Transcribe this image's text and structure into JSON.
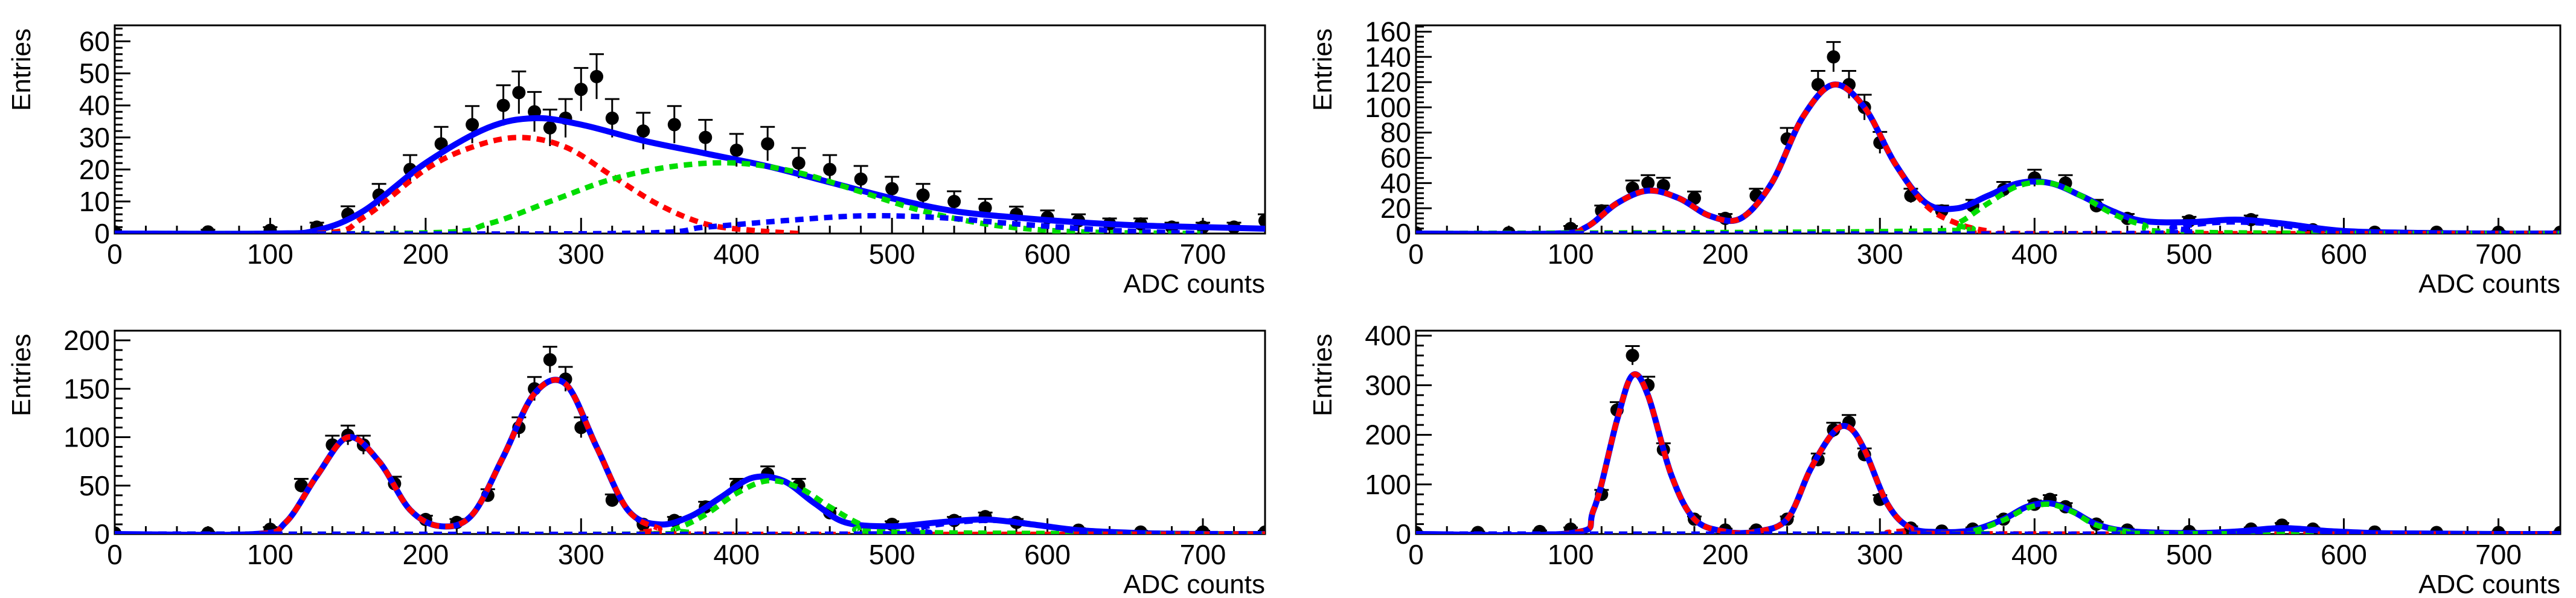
{
  "figure": {
    "panel_titles": [
      "",
      "",
      "",
      ""
    ]
  },
  "chart_data": [
    {
      "type": "scatter",
      "title": "",
      "xlabel": "ADC counts",
      "ylabel": "Entries",
      "xlim": [
        0,
        740
      ],
      "ylim": [
        0,
        65
      ],
      "xticks": [
        0,
        100,
        200,
        300,
        400,
        500,
        600,
        700
      ],
      "yticks": [
        0,
        10,
        20,
        30,
        40,
        50,
        60
      ],
      "grid": false,
      "legend": "none",
      "data_points": {
        "marker": "filled-circle",
        "error_bars": true,
        "x": [
          0,
          60,
          100,
          130,
          150,
          170,
          190,
          210,
          230,
          250,
          260,
          270,
          280,
          290,
          300,
          310,
          320,
          340,
          360,
          380,
          400,
          420,
          440,
          460,
          480,
          500,
          520,
          540,
          560,
          580,
          600,
          620,
          640,
          660,
          680,
          700,
          720,
          740
        ],
        "y": [
          0.5,
          0.5,
          1,
          2,
          6,
          12,
          20,
          28,
          34,
          40,
          44,
          38,
          33,
          36,
          45,
          49,
          36,
          32,
          34,
          30,
          26,
          28,
          22,
          20,
          17,
          14,
          12,
          10,
          8,
          6,
          5,
          4,
          3,
          3,
          2,
          2,
          2,
          4
        ],
        "yerr": [
          0.7,
          0.7,
          1,
          1.4,
          2.5,
          3.5,
          4.5,
          5.3,
          5.8,
          6.3,
          6.6,
          6.2,
          5.7,
          6,
          6.7,
          7,
          6,
          5.7,
          5.8,
          5.5,
          5.1,
          5.3,
          4.7,
          4.5,
          4.1,
          3.7,
          3.5,
          3.2,
          2.8,
          2.4,
          2.2,
          2,
          1.7,
          1.7,
          1.4,
          1.4,
          1.4,
          2
        ]
      },
      "series": [
        {
          "color": "#0000ff",
          "style": "solid",
          "x": [
            0,
            100,
            130,
            160,
            200,
            240,
            270,
            300,
            340,
            380,
            420,
            460,
            500,
            540,
            580,
            620,
            660,
            700,
            740
          ],
          "y": [
            0,
            0,
            1,
            7,
            22,
            33,
            36,
            34,
            29,
            25,
            21,
            16,
            11,
            7,
            5,
            3.5,
            2.5,
            2,
            1.5
          ]
        },
        {
          "color": "#ff0000",
          "style": "dashed",
          "x": [
            0,
            130,
            160,
            200,
            230,
            260,
            290,
            320,
            350,
            380,
            410,
            440
          ],
          "y": [
            0,
            0,
            5,
            20,
            27,
            30,
            27,
            18,
            9,
            3,
            1,
            0
          ]
        },
        {
          "color": "#00dd00",
          "style": "dashed",
          "x": [
            0,
            200,
            240,
            280,
            320,
            360,
            400,
            440,
            480,
            520,
            560,
            600,
            640,
            700
          ],
          "y": [
            0,
            0.2,
            3,
            10,
            17,
            21,
            22,
            19,
            13,
            7,
            3,
            1,
            0.3,
            0
          ]
        },
        {
          "color": "#0000ff",
          "style": "dashed",
          "x": [
            0,
            320,
            380,
            430,
            480,
            530,
            580,
            640,
            700
          ],
          "y": [
            0,
            0,
            2,
            4,
            5.5,
            5,
            3,
            1,
            0
          ]
        }
      ]
    },
    {
      "type": "scatter",
      "title": "",
      "xlabel": "ADC counts",
      "ylabel": "Entries",
      "xlim": [
        0,
        740
      ],
      "ylim": [
        0,
        165
      ],
      "xticks": [
        0,
        100,
        200,
        300,
        400,
        500,
        600,
        700
      ],
      "yticks": [
        0,
        20,
        40,
        60,
        80,
        100,
        120,
        140,
        160
      ],
      "grid": false,
      "legend": "none",
      "data_points": {
        "marker": "filled-circle",
        "error_bars": true,
        "x": [
          0,
          60,
          100,
          120,
          140,
          150,
          160,
          180,
          200,
          220,
          240,
          260,
          270,
          280,
          290,
          300,
          320,
          340,
          360,
          380,
          400,
          420,
          440,
          460,
          500,
          540,
          580,
          620,
          660,
          700,
          740
        ],
        "y": [
          0.5,
          0.5,
          4,
          18,
          36,
          40,
          38,
          28,
          12,
          30,
          75,
          118,
          140,
          118,
          100,
          72,
          30,
          18,
          22,
          35,
          44,
          40,
          22,
          12,
          10,
          11,
          3,
          1,
          1,
          1,
          1
        ],
        "yerr": [
          0.7,
          0.7,
          2,
          4.2,
          6,
          6.3,
          6.2,
          5.3,
          3.5,
          5.5,
          8.7,
          10.9,
          11.8,
          10.9,
          10,
          8.5,
          5.5,
          4.2,
          4.7,
          5.9,
          6.6,
          6.3,
          4.7,
          3.5,
          3.2,
          3.3,
          1.7,
          1,
          1,
          1,
          1
        ]
      },
      "series": [
        {
          "color": "#0000ff",
          "style": "solid",
          "x": [
            0,
            90,
            110,
            130,
            150,
            170,
            190,
            210,
            230,
            250,
            270,
            290,
            310,
            330,
            350,
            370,
            390,
            410,
            430,
            450,
            470,
            500,
            530,
            560,
            600,
            650,
            700,
            740
          ],
          "y": [
            0,
            0,
            5,
            24,
            34,
            28,
            14,
            12,
            40,
            92,
            118,
            100,
            55,
            24,
            20,
            30,
            40,
            40,
            30,
            18,
            10,
            9,
            11,
            8,
            2,
            0.5,
            0,
            0
          ]
        },
        {
          "color": "#ff0000",
          "style": "dashed",
          "x": [
            0,
            90,
            110,
            130,
            150,
            170,
            190,
            210,
            230,
            250,
            270,
            290,
            310,
            330,
            350,
            370,
            390,
            740
          ],
          "y": [
            0,
            0,
            5,
            24,
            34,
            28,
            14,
            12,
            40,
            92,
            118,
            100,
            55,
            22,
            8,
            2,
            0,
            0
          ]
        },
        {
          "color": "#00dd00",
          "style": "dashed",
          "x": [
            0,
            330,
            350,
            370,
            390,
            410,
            430,
            450,
            470,
            500,
            740
          ],
          "y": [
            0,
            2,
            8,
            24,
            38,
            40,
            30,
            16,
            7,
            1,
            0
          ]
        },
        {
          "color": "#0000ff",
          "style": "dashed",
          "x": [
            0,
            460,
            490,
            520,
            550,
            580,
            610,
            740
          ],
          "y": [
            0,
            0,
            5,
            9,
            8,
            3,
            0.5,
            0
          ]
        }
      ]
    },
    {
      "type": "scatter",
      "title": "",
      "xlabel": "ADC counts",
      "ylabel": "Entries",
      "xlim": [
        0,
        740
      ],
      "ylim": [
        0,
        210
      ],
      "xticks": [
        0,
        100,
        200,
        300,
        400,
        500,
        600,
        700
      ],
      "yticks": [
        0,
        50,
        100,
        150,
        200
      ],
      "grid": false,
      "legend": "none",
      "data_points": {
        "marker": "filled-circle",
        "error_bars": true,
        "x": [
          0,
          60,
          100,
          120,
          140,
          150,
          160,
          180,
          200,
          220,
          240,
          260,
          270,
          280,
          290,
          300,
          320,
          340,
          360,
          380,
          400,
          420,
          440,
          460,
          500,
          540,
          560,
          580,
          620,
          660,
          700,
          740
        ],
        "y": [
          1,
          1,
          5,
          50,
          92,
          102,
          92,
          52,
          15,
          12,
          40,
          110,
          150,
          180,
          160,
          110,
          35,
          10,
          14,
          28,
          50,
          62,
          50,
          22,
          10,
          14,
          18,
          12,
          4,
          2,
          2,
          2
        ],
        "yerr": [
          1,
          1,
          2.2,
          7,
          9.6,
          10,
          9.6,
          7.2,
          3.9,
          3.5,
          6.3,
          10.5,
          12.2,
          13.4,
          12.6,
          10.5,
          5.9,
          3.2,
          3.7,
          5.3,
          7,
          7.9,
          7,
          4.7,
          3.2,
          3.7,
          4.2,
          3.5,
          2,
          1.4,
          1.4,
          1.4
        ]
      },
      "series": [
        {
          "color": "#0000ff",
          "style": "solid",
          "x": [
            0,
            90,
            110,
            130,
            150,
            170,
            190,
            210,
            230,
            250,
            270,
            290,
            310,
            330,
            350,
            370,
            390,
            410,
            430,
            450,
            470,
            500,
            530,
            560,
            590,
            620,
            660,
            700,
            740
          ],
          "y": [
            0,
            0,
            12,
            60,
            100,
            75,
            25,
            8,
            20,
            80,
            145,
            155,
            90,
            25,
            10,
            18,
            38,
            58,
            55,
            32,
            12,
            8,
            12,
            15,
            10,
            4,
            1,
            0,
            0
          ]
        },
        {
          "color": "#ff0000",
          "style": "dashed",
          "x": [
            0,
            90,
            110,
            130,
            150,
            170,
            190,
            210,
            230,
            250,
            270,
            290,
            310,
            330,
            350,
            370,
            740
          ],
          "y": [
            0,
            0,
            12,
            60,
            100,
            75,
            25,
            8,
            20,
            80,
            145,
            155,
            90,
            25,
            6,
            0,
            0
          ]
        },
        {
          "color": "#00dd00",
          "style": "dashed",
          "x": [
            0,
            340,
            360,
            380,
            400,
            420,
            440,
            460,
            480,
            500,
            740
          ],
          "y": [
            0,
            0,
            5,
            20,
            42,
            55,
            48,
            28,
            10,
            2,
            0
          ]
        },
        {
          "color": "#0000ff",
          "style": "dashed",
          "x": [
            0,
            480,
            510,
            540,
            570,
            600,
            630,
            740
          ],
          "y": [
            0,
            0,
            5,
            12,
            14,
            8,
            2,
            0
          ]
        }
      ]
    },
    {
      "type": "scatter",
      "title": "",
      "xlabel": "ADC counts",
      "ylabel": "Entries",
      "xlim": [
        0,
        740
      ],
      "ylim": [
        0,
        410
      ],
      "xticks": [
        0,
        100,
        200,
        300,
        400,
        500,
        600,
        700
      ],
      "yticks": [
        0,
        100,
        200,
        300,
        400
      ],
      "grid": false,
      "legend": "none",
      "data_points": {
        "marker": "filled-circle",
        "error_bars": true,
        "x": [
          0,
          40,
          80,
          100,
          120,
          130,
          140,
          150,
          160,
          180,
          200,
          220,
          240,
          260,
          270,
          280,
          290,
          300,
          320,
          340,
          360,
          380,
          400,
          410,
          420,
          440,
          460,
          500,
          540,
          560,
          580,
          620,
          660,
          700,
          740
        ],
        "y": [
          3,
          3,
          5,
          10,
          80,
          250,
          360,
          300,
          170,
          30,
          8,
          8,
          30,
          150,
          210,
          225,
          160,
          70,
          12,
          6,
          10,
          30,
          60,
          70,
          55,
          20,
          8,
          5,
          10,
          18,
          10,
          4,
          3,
          3,
          3
        ],
        "yerr": [
          1.7,
          1.7,
          2.2,
          3.2,
          9,
          16,
          19,
          17.3,
          13,
          5.5,
          2.8,
          2.8,
          5.5,
          12.2,
          14.5,
          15,
          12.6,
          8.4,
          3.5,
          2.4,
          3.2,
          5.5,
          7.7,
          8.4,
          7.4,
          4.5,
          2.8,
          2.2,
          3.2,
          4.2,
          3.2,
          2,
          1.7,
          1.7,
          1.7
        ]
      },
      "series": [
        {
          "color": "#0000ff",
          "style": "solid",
          "x": [
            0,
            100,
            115,
            130,
            140,
            150,
            165,
            180,
            200,
            220,
            240,
            255,
            270,
            280,
            290,
            305,
            320,
            340,
            360,
            380,
            395,
            410,
            425,
            440,
            460,
            500,
            530,
            560,
            590,
            620,
            660,
            700,
            740
          ],
          "y": [
            0,
            2,
            50,
            230,
            320,
            280,
            120,
            30,
            5,
            5,
            30,
            130,
            205,
            215,
            170,
            60,
            12,
            4,
            8,
            30,
            55,
            62,
            45,
            20,
            6,
            2,
            5,
            12,
            6,
            2,
            1,
            0,
            0
          ]
        },
        {
          "color": "#ff0000",
          "style": "dashed",
          "x": [
            0,
            100,
            115,
            130,
            140,
            150,
            165,
            180,
            200,
            220,
            240,
            255,
            270,
            280,
            290,
            305,
            320,
            340,
            740
          ],
          "y": [
            0,
            2,
            50,
            230,
            320,
            280,
            120,
            30,
            5,
            5,
            30,
            130,
            205,
            215,
            170,
            60,
            12,
            1,
            0
          ]
        },
        {
          "color": "#00dd00",
          "style": "dashed",
          "x": [
            0,
            340,
            360,
            380,
            395,
            410,
            425,
            440,
            460,
            480,
            740
          ],
          "y": [
            0,
            0,
            6,
            28,
            52,
            60,
            44,
            18,
            5,
            1,
            0
          ]
        },
        {
          "color": "#0000ff",
          "style": "dashed",
          "x": [
            0,
            500,
            530,
            560,
            590,
            620,
            740
          ],
          "y": [
            0,
            0,
            4,
            10,
            5,
            1,
            0
          ]
        }
      ]
    }
  ]
}
